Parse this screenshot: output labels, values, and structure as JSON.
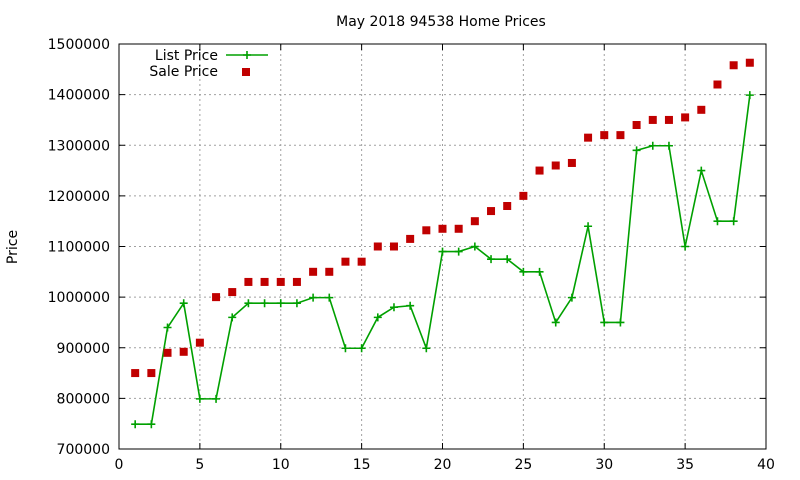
{
  "chart_data": {
    "type": "line",
    "title": "May 2018 94538 Home Prices",
    "xlabel": "",
    "ylabel": "Price",
    "xlim": [
      0,
      40
    ],
    "ylim": [
      700000,
      1500000
    ],
    "x_ticks": [
      0,
      5,
      10,
      15,
      20,
      25,
      30,
      35,
      40
    ],
    "y_ticks": [
      700000,
      800000,
      900000,
      1000000,
      1100000,
      1200000,
      1300000,
      1400000,
      1500000
    ],
    "grid": true,
    "legend_position": "top-left",
    "series": [
      {
        "name": "List Price",
        "style": "linespoints",
        "marker": "plus",
        "color": "#00a000",
        "x": [
          1,
          2,
          3,
          4,
          5,
          6,
          7,
          8,
          9,
          10,
          11,
          12,
          13,
          14,
          15,
          16,
          17,
          18,
          19,
          20,
          21,
          22,
          23,
          24,
          25,
          26,
          27,
          28,
          29,
          30,
          31,
          32,
          33,
          34,
          35,
          36,
          37,
          38,
          39
        ],
        "y": [
          749000,
          749000,
          940000,
          988000,
          799000,
          799000,
          960000,
          988000,
          988000,
          988000,
          988000,
          999000,
          999000,
          899000,
          899000,
          960000,
          980000,
          983000,
          899000,
          1090000,
          1090000,
          1100000,
          1075000,
          1075000,
          1050000,
          1050000,
          950000,
          999000,
          1140000,
          950000,
          950000,
          1290000,
          1299000,
          1299000,
          1100000,
          1250000,
          1150000,
          1150000,
          1399000
        ]
      },
      {
        "name": "Sale Price",
        "style": "points",
        "marker": "square",
        "color": "#c00000",
        "x": [
          1,
          2,
          3,
          4,
          5,
          6,
          7,
          8,
          9,
          10,
          11,
          12,
          13,
          14,
          15,
          16,
          17,
          18,
          19,
          20,
          21,
          22,
          23,
          24,
          25,
          26,
          27,
          28,
          29,
          30,
          31,
          32,
          33,
          34,
          35,
          36,
          37,
          38,
          39
        ],
        "y": [
          850000,
          850000,
          890000,
          892000,
          910000,
          1000000,
          1010000,
          1030000,
          1030000,
          1030000,
          1030000,
          1050000,
          1050000,
          1070000,
          1070000,
          1100000,
          1100000,
          1115000,
          1132000,
          1135000,
          1135000,
          1150000,
          1170000,
          1180000,
          1200000,
          1250000,
          1260000,
          1265000,
          1315000,
          1320000,
          1320000,
          1340000,
          1350000,
          1350000,
          1355000,
          1370000,
          1420000,
          1458000,
          1463000
        ]
      }
    ]
  }
}
